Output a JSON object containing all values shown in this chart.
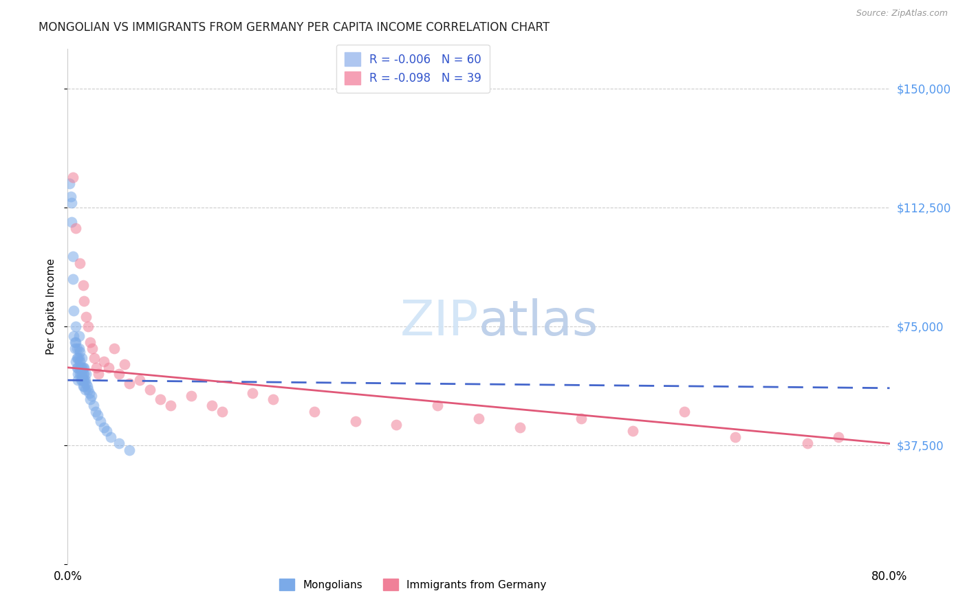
{
  "title": "MONGOLIAN VS IMMIGRANTS FROM GERMANY PER CAPITA INCOME CORRELATION CHART",
  "source": "Source: ZipAtlas.com",
  "ylabel": "Per Capita Income",
  "xlim": [
    0.0,
    0.8
  ],
  "ylim": [
    0,
    162500
  ],
  "yticks": [
    0,
    37500,
    75000,
    112500,
    150000
  ],
  "ytick_labels": [
    "",
    "$37,500",
    "$75,000",
    "$112,500",
    "$150,000"
  ],
  "xticks": [
    0.0,
    0.1,
    0.2,
    0.3,
    0.4,
    0.5,
    0.6,
    0.7,
    0.8
  ],
  "mongolians_color": "#7baae8",
  "germany_color": "#f08098",
  "trend_mongolians_color": "#4466cc",
  "trend_germany_color": "#e05878",
  "watermark_color": "#d0e4f7",
  "mongolians_x": [
    0.002,
    0.003,
    0.004,
    0.004,
    0.005,
    0.005,
    0.006,
    0.006,
    0.007,
    0.007,
    0.008,
    0.008,
    0.008,
    0.009,
    0.009,
    0.009,
    0.01,
    0.01,
    0.01,
    0.01,
    0.011,
    0.011,
    0.011,
    0.012,
    0.012,
    0.012,
    0.012,
    0.013,
    0.013,
    0.013,
    0.014,
    0.014,
    0.014,
    0.014,
    0.015,
    0.015,
    0.015,
    0.015,
    0.016,
    0.016,
    0.016,
    0.016,
    0.017,
    0.017,
    0.018,
    0.018,
    0.019,
    0.02,
    0.021,
    0.022,
    0.023,
    0.025,
    0.027,
    0.029,
    0.032,
    0.035,
    0.038,
    0.042,
    0.05,
    0.06
  ],
  "mongolians_y": [
    120000,
    116000,
    114000,
    108000,
    97000,
    90000,
    80000,
    72000,
    70000,
    68000,
    75000,
    70000,
    64000,
    68000,
    65000,
    62000,
    65000,
    62000,
    60000,
    58000,
    72000,
    68000,
    65000,
    67000,
    64000,
    62000,
    60000,
    62000,
    60000,
    58000,
    65000,
    62000,
    60000,
    58000,
    62000,
    60000,
    58000,
    56000,
    62000,
    60000,
    58000,
    56000,
    58000,
    55000,
    60000,
    57000,
    56000,
    55000,
    54000,
    52000,
    53000,
    50000,
    48000,
    47000,
    45000,
    43000,
    42000,
    40000,
    38000,
    36000
  ],
  "germany_x": [
    0.005,
    0.008,
    0.012,
    0.015,
    0.016,
    0.018,
    0.02,
    0.022,
    0.024,
    0.026,
    0.028,
    0.03,
    0.035,
    0.04,
    0.045,
    0.05,
    0.055,
    0.06,
    0.07,
    0.08,
    0.09,
    0.1,
    0.12,
    0.14,
    0.15,
    0.18,
    0.2,
    0.24,
    0.28,
    0.32,
    0.36,
    0.4,
    0.44,
    0.5,
    0.55,
    0.6,
    0.65,
    0.72,
    0.75
  ],
  "germany_y": [
    122000,
    106000,
    95000,
    88000,
    83000,
    78000,
    75000,
    70000,
    68000,
    65000,
    62000,
    60000,
    64000,
    62000,
    68000,
    60000,
    63000,
    57000,
    58000,
    55000,
    52000,
    50000,
    53000,
    50000,
    48000,
    54000,
    52000,
    48000,
    45000,
    44000,
    50000,
    46000,
    43000,
    46000,
    42000,
    48000,
    40000,
    38000,
    40000
  ],
  "trend_m_x0": 0.0,
  "trend_m_x1": 0.8,
  "trend_m_y0": 58000,
  "trend_m_y1": 55500,
  "trend_g_x0": 0.0,
  "trend_g_x1": 0.8,
  "trend_g_y0": 62000,
  "trend_g_y1": 38000
}
